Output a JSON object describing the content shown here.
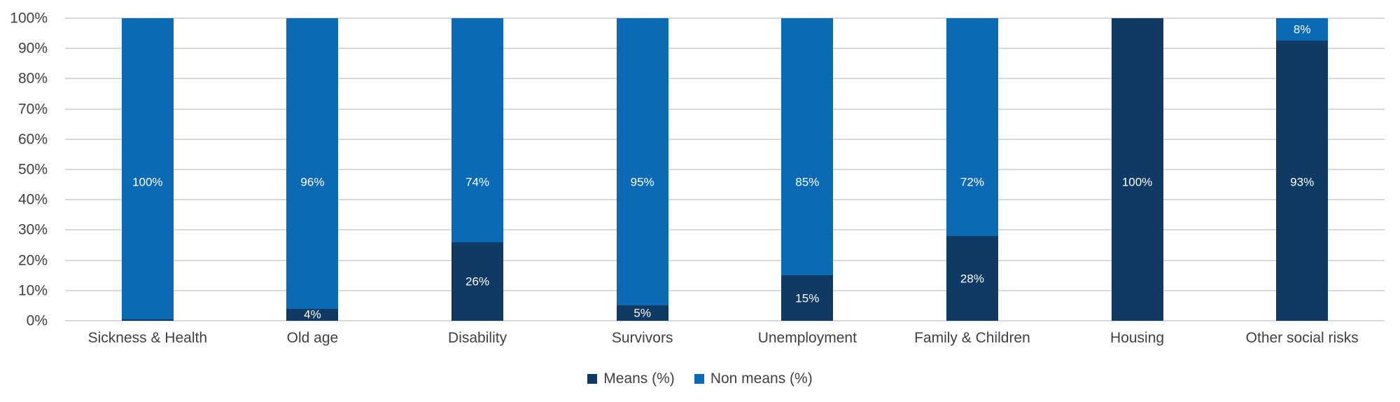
{
  "chart_data": {
    "type": "bar",
    "variant": "stacked-100-percent",
    "title": "",
    "categories": [
      "Sickness & Health",
      "Old age",
      "Disability",
      "Survivors",
      "Unemployment",
      "Family & Children",
      "Housing",
      "Other social risks"
    ],
    "series": [
      {
        "name": "Means (%)",
        "color": "#0E3A63",
        "values": [
          0.5,
          4,
          26,
          5,
          15,
          28,
          100,
          92.5
        ],
        "labels": [
          "",
          "4%",
          "26%",
          "5%",
          "15%",
          "28%",
          "100%",
          "93%"
        ]
      },
      {
        "name": "Non means (%)",
        "color": "#0B6AB4",
        "values": [
          99.5,
          96,
          74,
          95,
          85,
          72,
          0,
          7.5
        ],
        "labels": [
          "100%",
          "96%",
          "74%",
          "95%",
          "85%",
          "72%",
          "",
          "8%"
        ]
      }
    ],
    "y_axis": {
      "min": 0,
      "max": 100,
      "tick_labels": [
        "0%",
        "10%",
        "20%",
        "30%",
        "40%",
        "50%",
        "60%",
        "70%",
        "80%",
        "90%",
        "100%"
      ]
    },
    "x_axis_labels": [
      "Sickness & Health",
      "Old age",
      "Disability",
      "Survivors",
      "Unemployment",
      "Family & Children",
      "Housing",
      "Other social risks"
    ],
    "grid": true,
    "legend": {
      "position": "bottom",
      "entries": [
        "Means (%)",
        "Non means (%)"
      ]
    }
  },
  "colors": {
    "means": "#0E3A63",
    "non_means": "#0B6AB4",
    "gridline": "#D9D9D9",
    "axis_text": "#404040",
    "data_label": "#FFFFFF",
    "background": "#FFFFFF"
  }
}
